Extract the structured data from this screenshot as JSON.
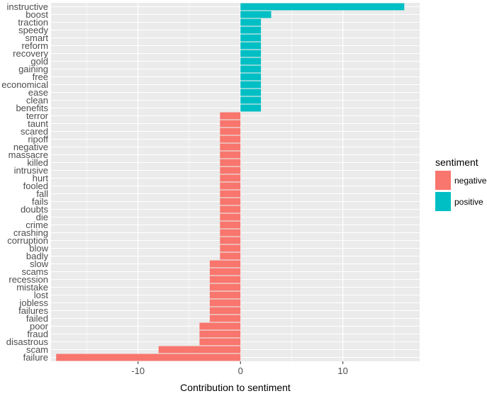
{
  "chart_data": {
    "type": "bar",
    "orientation": "horizontal",
    "xlabel": "Contribution to sentiment",
    "ylabel": "",
    "xlim": [
      -18.5,
      17.5
    ],
    "x_ticks": [
      -10,
      0,
      10
    ],
    "x_tick_labels": [
      "-10",
      "0",
      "10"
    ],
    "grid": true,
    "legend": {
      "title": "sentiment",
      "position": "right",
      "entries": [
        {
          "label": "negative",
          "color": "#F8766D"
        },
        {
          "label": "positive",
          "color": "#00BFC4"
        }
      ]
    },
    "categories": [
      "instructive",
      "boost",
      "traction",
      "speedy",
      "smart",
      "reform",
      "recovery",
      "gold",
      "gaining",
      "free",
      "economical",
      "ease",
      "clean",
      "benefits",
      "terror",
      "taunt",
      "scared",
      "ripoff",
      "negative",
      "massacre",
      "killed",
      "intrusive",
      "hurt",
      "fooled",
      "fall",
      "fails",
      "doubts",
      "die",
      "crime",
      "crashing",
      "corruption",
      "blow",
      "badly",
      "slow",
      "scams",
      "recession",
      "mistake",
      "lost",
      "jobless",
      "failures",
      "failed",
      "poor",
      "fraud",
      "disastrous",
      "scam",
      "failure"
    ],
    "values": [
      16,
      3,
      2,
      2,
      2,
      2,
      2,
      2,
      2,
      2,
      2,
      2,
      2,
      2,
      -2,
      -2,
      -2,
      -2,
      -2,
      -2,
      -2,
      -2,
      -2,
      -2,
      -2,
      -2,
      -2,
      -2,
      -2,
      -2,
      -2,
      -2,
      -2,
      -3,
      -3,
      -3,
      -3,
      -3,
      -3,
      -3,
      -3,
      -4,
      -4,
      -4,
      -8,
      -18
    ],
    "sentiment": [
      "positive",
      "positive",
      "positive",
      "positive",
      "positive",
      "positive",
      "positive",
      "positive",
      "positive",
      "positive",
      "positive",
      "positive",
      "positive",
      "positive",
      "negative",
      "negative",
      "negative",
      "negative",
      "negative",
      "negative",
      "negative",
      "negative",
      "negative",
      "negative",
      "negative",
      "negative",
      "negative",
      "negative",
      "negative",
      "negative",
      "negative",
      "negative",
      "negative",
      "negative",
      "negative",
      "negative",
      "negative",
      "negative",
      "negative",
      "negative",
      "negative",
      "negative",
      "negative",
      "negative",
      "negative",
      "negative"
    ],
    "colors": {
      "positive": "#00BFC4",
      "negative": "#F8766D",
      "panel": "#EBEBEB",
      "grid": "#FFFFFF"
    }
  }
}
